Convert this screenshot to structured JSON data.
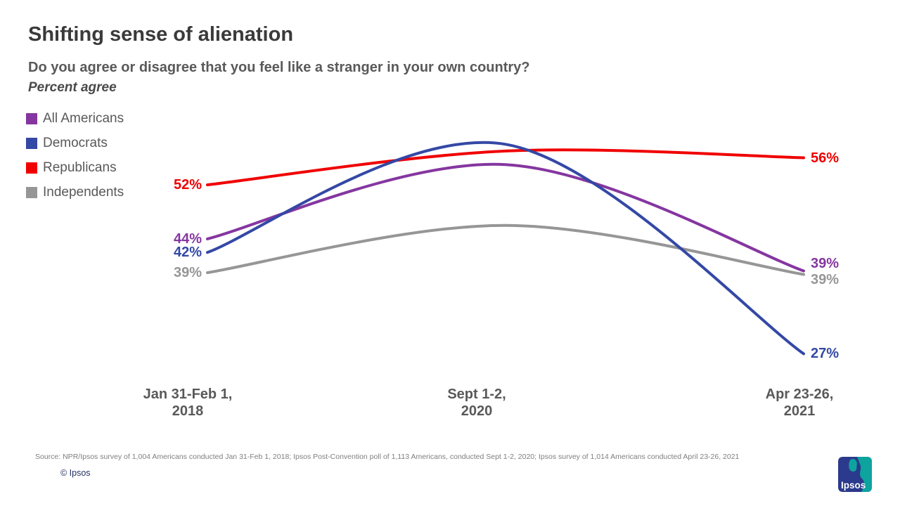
{
  "header": {
    "title": "Shifting sense of alienation",
    "subtitle": "Do you agree or disagree that you feel like a stranger in your own country?",
    "metric_note": "Percent agree"
  },
  "chart_data": {
    "type": "line",
    "title": "Shifting sense of alienation",
    "question": "Do you agree or disagree that you feel like a stranger in your own country?",
    "unit": "Percent agree",
    "x_categories": [
      {
        "line1": "Jan 31-Feb 1,",
        "line2": "2018"
      },
      {
        "line1": "Sept 1-2,",
        "line2": "2020"
      },
      {
        "line1": "Apr 23-26,",
        "line2": "2021"
      }
    ],
    "series": [
      {
        "name": "All Americans",
        "color": "#8536A0",
        "values": [
          44,
          55,
          39
        ],
        "start_label": "44%",
        "end_label": "39%"
      },
      {
        "name": "Democrats",
        "color": "#3448A5",
        "values": [
          42,
          58,
          27
        ],
        "start_label": "42%",
        "end_label": "27%"
      },
      {
        "name": "Republicans",
        "color": "#F00000",
        "values": [
          52,
          57,
          56
        ],
        "start_label": "52%",
        "end_label": "56%"
      },
      {
        "name": "Independents",
        "color": "#969696",
        "values": [
          39,
          46,
          39
        ],
        "start_label": "39%",
        "end_label": "39%"
      }
    ],
    "ylim": [
      20,
      65
    ],
    "grid": false,
    "legend_position": "top-left",
    "curve": "smooth"
  },
  "footer": {
    "source": "Source: NPR/Ipsos  survey of 1,004 Americans conducted Jan 31-Feb 1, 2018; Ipsos Post-Convention poll of 1,113 Americans, conducted Sept 1-2, 2020; Ipsos survey of 1,014 Americans conducted April 23-26, 2021",
    "copyright": "© Ipsos",
    "logo_text": "Ipsos",
    "logo_colors": {
      "navy": "#2B3A8C",
      "teal": "#0DA39E"
    }
  }
}
